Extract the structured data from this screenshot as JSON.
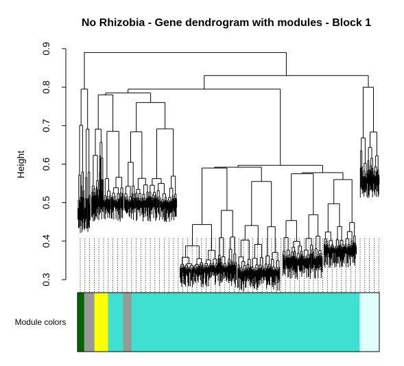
{
  "chart_data": {
    "type": "dendrogram",
    "title": "No Rhizobia - Gene dendrogram with modules - Block 1",
    "ylabel": "Height",
    "ylim": [
      0.3,
      0.9
    ],
    "yticks": [
      "0.3",
      "0.4",
      "0.5",
      "0.6",
      "0.7",
      "0.8",
      "0.9"
    ],
    "color_bar_label": "Module colors",
    "module_colors": [
      {
        "color": "#006400",
        "fraction": 0.022
      },
      {
        "color": "#999999",
        "fraction": 0.034
      },
      {
        "color": "#ffff00",
        "fraction": 0.045
      },
      {
        "color": "#40e0d0",
        "fraction": 0.05
      },
      {
        "color": "#999999",
        "fraction": 0.028
      },
      {
        "color": "#40e0d0",
        "fraction": 0.756
      },
      {
        "color": "#e0ffff",
        "fraction": 0.065
      }
    ],
    "major_merges": [
      0.89,
      0.83,
      0.8,
      0.79,
      0.59,
      0.58
    ]
  }
}
